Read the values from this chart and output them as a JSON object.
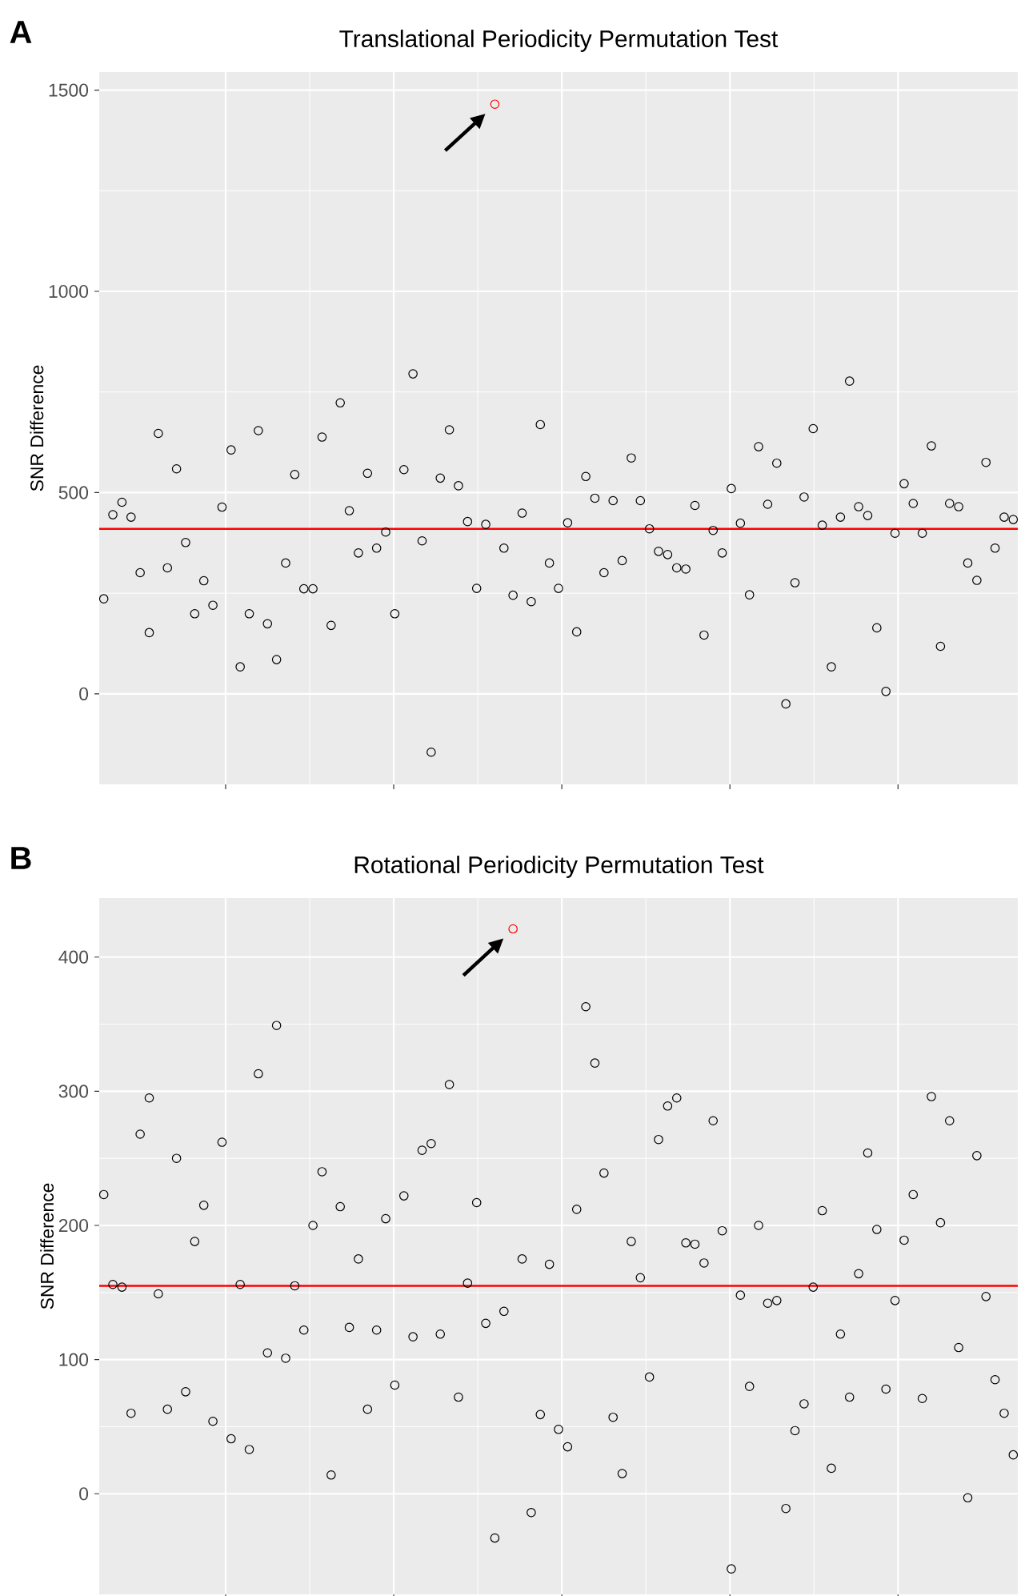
{
  "chart_data": [
    {
      "type": "scatter",
      "title": "Translational Periodicity Permutation Test",
      "ylabel": "SNR Difference",
      "annotations": [
        "A"
      ],
      "categories": [
        null,
        null,
        null,
        null,
        null,
        null,
        null,
        null,
        null,
        null,
        null,
        null,
        null,
        null,
        null,
        null,
        null,
        null,
        null,
        null,
        null,
        null,
        null,
        null,
        null,
        null,
        null,
        null,
        null,
        null,
        null,
        null,
        null,
        null,
        null,
        null,
        null,
        null,
        null,
        null,
        null,
        null,
        null,
        null,
        null,
        null,
        null,
        null,
        null,
        null,
        null,
        null,
        null,
        null,
        null,
        null,
        null,
        null,
        null,
        null,
        null,
        null,
        null,
        null,
        null,
        null,
        null,
        null,
        null,
        null,
        null,
        null,
        null,
        null,
        null,
        null,
        null,
        null,
        null,
        null,
        null,
        null,
        null,
        null,
        null,
        null,
        null,
        null,
        null,
        null,
        null,
        null,
        null,
        null,
        null,
        null,
        null,
        null,
        null,
        null,
        null
      ],
      "ylim": [
        -225,
        1545
      ],
      "yticks": [
        0,
        500,
        1000,
        1500
      ],
      "tick_labels": "y",
      "grid": true,
      "marker": "circle",
      "ref_lines": [
        {
          "axis": "y",
          "value": 410,
          "color": "#ff0000"
        }
      ],
      "series": [
        {
          "color": "#000000",
          "values": [
            236,
            445,
            476,
            439,
            301,
            152,
            647,
            313,
            559,
            376,
            199,
            281,
            220,
            464,
            606,
            67,
            199,
            654,
            174,
            85,
            325,
            545,
            261,
            261,
            638,
            170,
            723,
            455,
            350,
            548,
            362,
            402,
            199,
            557,
            795,
            380,
            -145,
            536,
            656,
            517,
            428,
            262,
            421,
            null,
            362,
            245,
            449,
            229,
            669,
            325,
            262,
            425,
            154,
            540,
            486,
            301,
            480,
            331,
            586,
            480,
            410,
            354,
            346,
            313,
            310,
            468,
            146,
            406,
            350,
            510,
            424,
            246,
            614,
            471,
            573,
            -25,
            276,
            489,
            659,
            419,
            67,
            439,
            777,
            465,
            443,
            164,
            6,
            399,
            522,
            473,
            399,
            616,
            118,
            473,
            465,
            325,
            282,
            575,
            362,
            439,
            433
          ]
        },
        {
          "color": "#ff0000",
          "values": [
            null,
            null,
            null,
            null,
            null,
            null,
            null,
            null,
            null,
            null,
            null,
            null,
            null,
            null,
            null,
            null,
            null,
            null,
            null,
            null,
            null,
            null,
            null,
            null,
            null,
            null,
            null,
            null,
            null,
            null,
            null,
            null,
            null,
            null,
            null,
            null,
            null,
            null,
            null,
            null,
            null,
            null,
            null,
            1465,
            null,
            null,
            null,
            null,
            null,
            null,
            null,
            null,
            null,
            null,
            null,
            null,
            null,
            null,
            null,
            null,
            null,
            null,
            null,
            null,
            null,
            null,
            null,
            null,
            null,
            null,
            null,
            null,
            null,
            null,
            null,
            null,
            null,
            null,
            null,
            null,
            null,
            null,
            null,
            null,
            null,
            null,
            null,
            null,
            null,
            null,
            null,
            null,
            null,
            null,
            null,
            null,
            null,
            null,
            null,
            null,
            null
          ]
        }
      ]
    },
    {
      "type": "scatter",
      "title": "Rotational Periodicity Permutation Test",
      "ylabel": "SNR Difference",
      "annotations": [
        "B"
      ],
      "categories": [
        null,
        null,
        null,
        null,
        null,
        null,
        null,
        null,
        null,
        null,
        null,
        null,
        null,
        null,
        null,
        null,
        null,
        null,
        null,
        null,
        null,
        null,
        null,
        null,
        null,
        null,
        null,
        null,
        null,
        null,
        null,
        null,
        null,
        null,
        null,
        null,
        null,
        null,
        null,
        null,
        null,
        null,
        null,
        null,
        null,
        null,
        null,
        null,
        null,
        null,
        null,
        null,
        null,
        null,
        null,
        null,
        null,
        null,
        null,
        null,
        null,
        null,
        null,
        null,
        null,
        null,
        null,
        null,
        null,
        null,
        null,
        null,
        null,
        null,
        null,
        null,
        null,
        null,
        null,
        null,
        null,
        null,
        null,
        null,
        null,
        null,
        null,
        null,
        null,
        null,
        null,
        null,
        null,
        null,
        null,
        null,
        null,
        null,
        null,
        null,
        null
      ],
      "ylim": [
        -75,
        444
      ],
      "yticks": [
        0,
        100,
        200,
        300,
        400
      ],
      "tick_labels": "y",
      "grid": true,
      "marker": "circle",
      "ref_lines": [
        {
          "axis": "y",
          "value": 155,
          "color": "#ff0000"
        }
      ],
      "series": [
        {
          "color": "#000000",
          "values": [
            223,
            156,
            154,
            60,
            268,
            295,
            149,
            63,
            250,
            76,
            188,
            215,
            54,
            262,
            41,
            156,
            33,
            313,
            105,
            349,
            101,
            155,
            122,
            200,
            240,
            14,
            214,
            124,
            175,
            63,
            122,
            205,
            81,
            222,
            117,
            256,
            261,
            119,
            305,
            72,
            157,
            217,
            127,
            -33,
            136,
            null,
            175,
            -14,
            59,
            171,
            48,
            35,
            212,
            363,
            321,
            239,
            57,
            15,
            188,
            161,
            87,
            264,
            289,
            295,
            187,
            186,
            172,
            278,
            196,
            -56,
            148,
            80,
            200,
            142,
            144,
            -11,
            47,
            67,
            154,
            211,
            19,
            119,
            72,
            164,
            254,
            197,
            78,
            144,
            189,
            223,
            71,
            296,
            202,
            278,
            109,
            -3,
            252,
            147,
            85,
            60,
            29
          ]
        },
        {
          "color": "#ff0000",
          "values": [
            null,
            null,
            null,
            null,
            null,
            null,
            null,
            null,
            null,
            null,
            null,
            null,
            null,
            null,
            null,
            null,
            null,
            null,
            null,
            null,
            null,
            null,
            null,
            null,
            null,
            null,
            null,
            null,
            null,
            null,
            null,
            null,
            null,
            null,
            null,
            null,
            null,
            null,
            null,
            null,
            null,
            null,
            null,
            null,
            null,
            421,
            null,
            null,
            null,
            null,
            null,
            null,
            null,
            null,
            null,
            null,
            null,
            null,
            null,
            null,
            null,
            null,
            null,
            null,
            null,
            null,
            null,
            null,
            null,
            null,
            null,
            null,
            null,
            null,
            null,
            null,
            null,
            null,
            null,
            null,
            null,
            null,
            null,
            null,
            null,
            null,
            null,
            null,
            null,
            null,
            null,
            null,
            null,
            null,
            null,
            null,
            null,
            null,
            null,
            null,
            null
          ]
        }
      ]
    }
  ]
}
